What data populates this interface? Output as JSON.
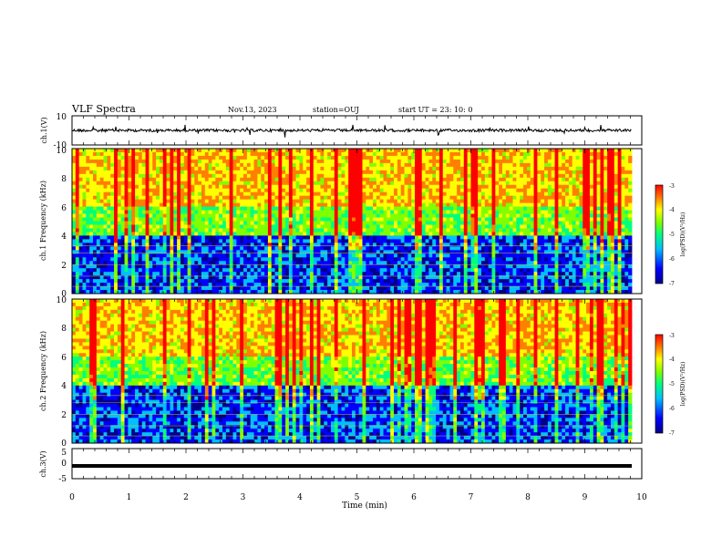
{
  "header": {
    "title": "VLF Spectra",
    "date": "Nov.13, 2023",
    "station": "station=OUJ",
    "start": "start  UT =   23: 10: 0"
  },
  "chart_data": [
    {
      "type": "line",
      "panel": "ch1-waveform",
      "ylabel": "ch.1(V)",
      "ylim": [
        -10,
        10
      ],
      "yticks": [
        "10",
        "-10"
      ],
      "xlim": [
        0,
        10
      ],
      "description_values": {
        "baseline_v": 0,
        "typical_range_v": [
          -1.5,
          1.5
        ]
      }
    },
    {
      "type": "heatmap",
      "panel": "ch1-spectrogram",
      "ylabel": "ch.1 Frequency (kHz)",
      "ylim": [
        0,
        10
      ],
      "yticks": [
        "0",
        "2",
        "4",
        "6",
        "8",
        "10"
      ],
      "xlim": [
        0,
        10
      ],
      "colorbar": {
        "label": "log(PSD)(V²/Hz)",
        "range": [
          -7,
          -3
        ],
        "ticks": [
          "-3",
          "-4",
          "-5",
          "-6",
          "-7"
        ]
      }
    },
    {
      "type": "heatmap",
      "panel": "ch2-spectrogram",
      "ylabel": "ch.2 Frequency (kHz)",
      "ylim": [
        0,
        10
      ],
      "yticks": [
        "0",
        "2",
        "4",
        "6",
        "8",
        "10"
      ],
      "xlim": [
        0,
        10
      ],
      "colorbar": {
        "label": "log(PSD)(V²/Hz)",
        "range": [
          -7,
          -3
        ],
        "ticks": [
          "-3",
          "-4",
          "-5",
          "-6",
          "-7"
        ]
      }
    },
    {
      "type": "line",
      "panel": "ch3-waveform",
      "ylabel": "ch.3(V)",
      "ylim": [
        -5,
        5
      ],
      "yticks": [
        "5",
        "0",
        "-5"
      ],
      "xlim": [
        0,
        10
      ],
      "description_values": {
        "constant_v": -1
      }
    }
  ],
  "xaxis": {
    "label": "Time  (min)",
    "ticks": [
      "0",
      "1",
      "2",
      "3",
      "4",
      "5",
      "6",
      "7",
      "8",
      "9",
      "10"
    ],
    "range": [
      0,
      10
    ]
  },
  "colors": {
    "scale": [
      "#00008b",
      "#0000ff",
      "#00bfff",
      "#00ff7f",
      "#7fff00",
      "#ffff00",
      "#ff7f00",
      "#ff0000"
    ]
  }
}
